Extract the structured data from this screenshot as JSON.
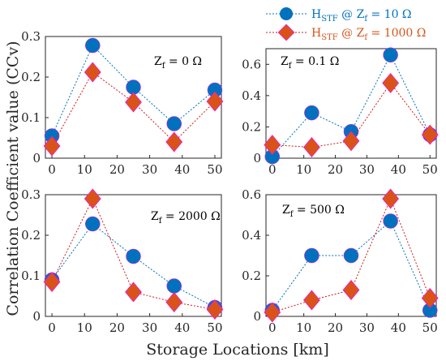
{
  "figure": {
    "ylabel": "Correlation Coefficient value (CCv)",
    "xlabel": "Storage Locations [km]"
  },
  "legend": {
    "placement": "top-right, above subplots",
    "entries": [
      {
        "text_main": "H",
        "text_sub": "STF",
        "text_rest": " @ Z",
        "text_sub2": "f",
        "text_end": " = 10 Ω",
        "color": "#0072BD",
        "marker": "circle"
      },
      {
        "text_main": "H",
        "text_sub": "STF",
        "text_rest": " @ Z",
        "text_sub2": "f",
        "text_end": " = 1000 Ω",
        "color": "#D95319",
        "marker": "diamond"
      }
    ]
  },
  "colors": {
    "series1": "#0072BD",
    "series1_line": "#0072BD",
    "series2": "#D95319",
    "series2_line": "#CC1F1F",
    "marker_halo": "#FF00FF"
  },
  "chart_data": [
    {
      "type": "line",
      "annotation": {
        "main": "Z",
        "sub": "f",
        "rest": " = 0 Ω"
      },
      "x": [
        0,
        12.5,
        25,
        37.5,
        50
      ],
      "xticks": [
        "0",
        "10",
        "20",
        "30",
        "40",
        "50"
      ],
      "yticks": [
        "0",
        "0.1",
        "0.2",
        "0.3"
      ],
      "ylim": [
        0,
        0.3
      ],
      "xlim": [
        -2,
        52
      ],
      "series": [
        {
          "values": [
            0.055,
            0.278,
            0.175,
            0.085,
            0.168
          ]
        },
        {
          "values": [
            0.03,
            0.212,
            0.138,
            0.04,
            0.14
          ]
        }
      ]
    },
    {
      "type": "line",
      "annotation": {
        "main": "Z",
        "sub": "f",
        "rest": " = 0.1 Ω"
      },
      "x": [
        0,
        12.5,
        25,
        37.5,
        50
      ],
      "xticks": [
        "0",
        "10",
        "20",
        "30",
        "40",
        "50"
      ],
      "yticks": [
        "0",
        "0.2",
        "0.4",
        "0.6"
      ],
      "ylim": [
        0,
        0.7
      ],
      "xlim": [
        -2,
        52
      ],
      "series": [
        {
          "values": [
            0.01,
            0.29,
            0.17,
            0.66,
            0.15
          ]
        },
        {
          "values": [
            0.085,
            0.07,
            0.11,
            0.48,
            0.15
          ]
        }
      ]
    },
    {
      "type": "line",
      "annotation": {
        "main": "Z",
        "sub": "f",
        "rest": " = 2000 Ω"
      },
      "x": [
        0,
        12.5,
        25,
        37.5,
        50
      ],
      "xticks": [
        "0",
        "10",
        "20",
        "30",
        "40",
        "50"
      ],
      "yticks": [
        "0",
        "0.1",
        "0.2",
        "0.3"
      ],
      "ylim": [
        0,
        0.3
      ],
      "xlim": [
        -2,
        52
      ],
      "series": [
        {
          "values": [
            0.09,
            0.228,
            0.148,
            0.075,
            0.022
          ]
        },
        {
          "values": [
            0.085,
            0.29,
            0.06,
            0.035,
            0.017
          ]
        }
      ]
    },
    {
      "type": "line",
      "annotation": {
        "main": "Z",
        "sub": "f",
        "rest": " = 500 Ω"
      },
      "x": [
        0,
        12.5,
        25,
        37.5,
        50
      ],
      "xticks": [
        "0",
        "10",
        "20",
        "30",
        "40",
        "50"
      ],
      "yticks": [
        "0",
        "0.2",
        "0.4",
        "0.6"
      ],
      "ylim": [
        0,
        0.6
      ],
      "xlim": [
        -2,
        52
      ],
      "series": [
        {
          "values": [
            0.03,
            0.3,
            0.3,
            0.47,
            0.03
          ]
        },
        {
          "values": [
            0.02,
            0.08,
            0.13,
            0.58,
            0.09
          ]
        }
      ]
    }
  ]
}
